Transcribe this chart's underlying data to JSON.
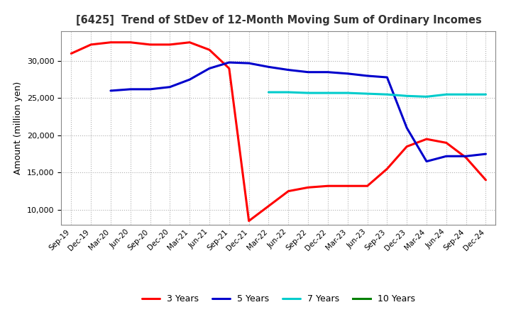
{
  "title": "[6425]  Trend of StDev of 12-Month Moving Sum of Ordinary Incomes",
  "ylabel": "Amount (million yen)",
  "ylim": [
    8000,
    34000
  ],
  "yticks": [
    10000,
    15000,
    20000,
    25000,
    30000
  ],
  "background_color": "#ffffff",
  "grid_color": "#b0b0b0",
  "x_labels": [
    "Sep-19",
    "Dec-19",
    "Mar-20",
    "Jun-20",
    "Sep-20",
    "Dec-20",
    "Mar-21",
    "Jun-21",
    "Sep-21",
    "Dec-21",
    "Mar-22",
    "Jun-22",
    "Sep-22",
    "Dec-22",
    "Mar-23",
    "Jun-23",
    "Sep-23",
    "Dec-23",
    "Mar-24",
    "Jun-24",
    "Sep-24",
    "Dec-24"
  ],
  "series": {
    "3 Years": {
      "color": "#ff0000",
      "data": [
        31000,
        32200,
        32500,
        32500,
        32200,
        32200,
        32500,
        31500,
        29000,
        8500,
        10500,
        12500,
        13000,
        13200,
        13200,
        13200,
        15500,
        18500,
        19500,
        19000,
        17000,
        14000
      ]
    },
    "5 Years": {
      "color": "#0000cc",
      "data": [
        null,
        null,
        26000,
        26200,
        26200,
        26500,
        27500,
        29000,
        29800,
        29700,
        29200,
        28800,
        28500,
        28500,
        28300,
        28000,
        27800,
        21000,
        16500,
        17200,
        17200,
        17500
      ]
    },
    "7 Years": {
      "color": "#00cccc",
      "data": [
        null,
        null,
        null,
        null,
        null,
        null,
        null,
        null,
        null,
        null,
        25800,
        25800,
        25700,
        25700,
        25700,
        25600,
        25500,
        25300,
        25200,
        25500,
        25500,
        25500
      ]
    },
    "10 Years": {
      "color": "#008000",
      "data": [
        null,
        null,
        null,
        null,
        null,
        null,
        null,
        null,
        null,
        null,
        null,
        null,
        null,
        null,
        null,
        null,
        null,
        null,
        null,
        null,
        null,
        null
      ]
    }
  },
  "legend_order": [
    "3 Years",
    "5 Years",
    "7 Years",
    "10 Years"
  ]
}
